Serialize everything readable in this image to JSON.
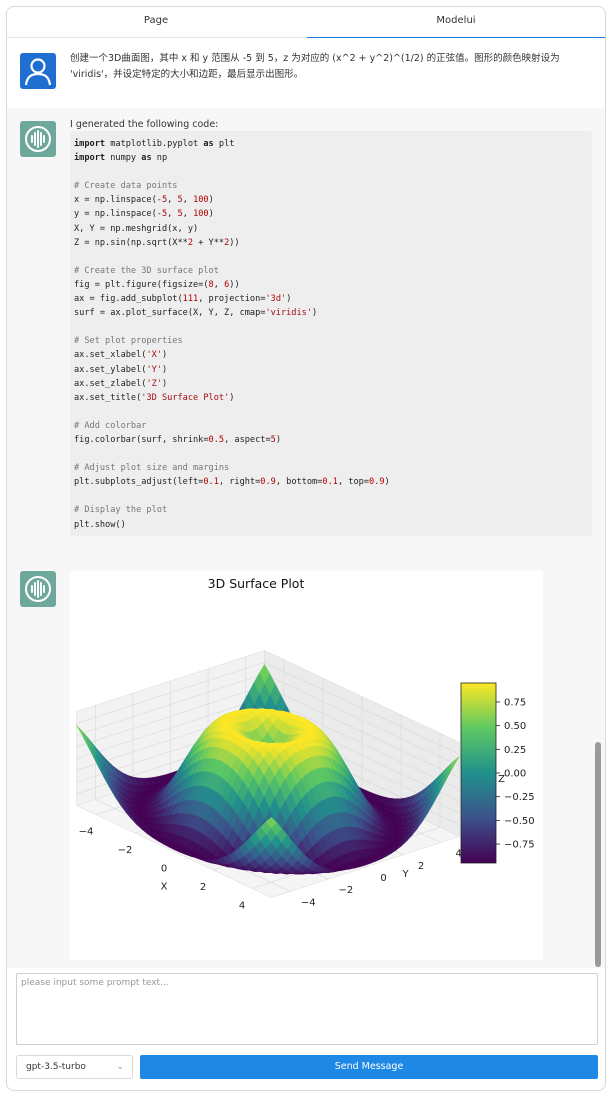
{
  "tabs": [
    {
      "label": "Page"
    },
    {
      "label": "Modelui"
    }
  ],
  "messages": {
    "user_prompt": "创建一个3D曲面图，其中 x 和 y 范围从 -5 到 5，z 为对应的 (x^2 + y^2)^(1/2) 的正弦值。图形的颜色映射设为 'viridis'，并设定特定的大小和边距，最后显示出图形。",
    "bot_intro": "I generated the following code:",
    "code_lines": [
      "import matplotlib.pyplot as plt",
      "import numpy as np",
      "",
      "# Create data points",
      "x = np.linspace(-5, 5, 100)",
      "y = np.linspace(-5, 5, 100)",
      "X, Y = np.meshgrid(x, y)",
      "Z = np.sin(np.sqrt(X**2 + Y**2))",
      "",
      "# Create the 3D surface plot",
      "fig = plt.figure(figsize=(8, 6))",
      "ax = fig.add_subplot(111, projection='3d')",
      "surf = ax.plot_surface(X, Y, Z, cmap='viridis')",
      "",
      "# Set plot properties",
      "ax.set_xlabel('X')",
      "ax.set_ylabel('Y')",
      "ax.set_zlabel('Z')",
      "ax.set_title('3D Surface Plot')",
      "",
      "# Add colorbar",
      "fig.colorbar(surf, shrink=0.5, aspect=5)",
      "",
      "# Adjust plot size and margins",
      "plt.subplots_adjust(left=0.1, right=0.9, bottom=0.1, top=0.9)",
      "",
      "# Display the plot",
      "plt.show()"
    ]
  },
  "chart_data": {
    "type": "surface3d",
    "title": "3D Surface Plot",
    "xlabel": "X",
    "ylabel": "Y",
    "zlabel": "Z",
    "xlim": [
      -5,
      5
    ],
    "ylim": [
      -5,
      5
    ],
    "zlim": [
      -1,
      1
    ],
    "x_ticks": [
      "−4",
      "−2",
      "0",
      "2",
      "4"
    ],
    "y_ticks": [
      "−4",
      "−2",
      "0",
      "2",
      "4"
    ],
    "z_ticks": [
      "0.75",
      "0.50",
      "0.25",
      "0.00",
      "−0.25",
      "−0.50",
      "−0.75"
    ],
    "colorbar_ticks": [
      "0.75",
      "0.50",
      "0.25",
      "0.00",
      "−0.25",
      "−0.50",
      "−0.75"
    ],
    "colormap": "viridis",
    "colorbar_stops": [
      "#440154",
      "#3b528b",
      "#21918c",
      "#5ec962",
      "#fde725"
    ]
  },
  "composer": {
    "placeholder": "please input some prompt text...",
    "value": "",
    "model": "gpt-3.5-turbo",
    "send_label": "Send Message"
  },
  "colors": {
    "accent": "#1f88e5",
    "user_avatar": "#1f6fd1",
    "bot_avatar": "#6ea89a"
  }
}
